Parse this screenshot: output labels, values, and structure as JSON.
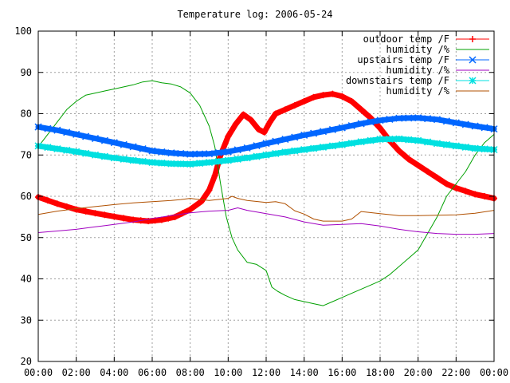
{
  "chart_data": {
    "type": "line",
    "title": "Temperature log: 2006-05-24",
    "xlabel": "",
    "ylabel": "",
    "x_ticks": [
      "00:00",
      "02:00",
      "04:00",
      "06:00",
      "08:00",
      "10:00",
      "12:00",
      "14:00",
      "16:00",
      "18:00",
      "20:00",
      "22:00",
      "00:00"
    ],
    "y_ticks": [
      20,
      30,
      40,
      50,
      60,
      70,
      80,
      90,
      100
    ],
    "xlim": [
      0,
      24
    ],
    "ylim": [
      20,
      100
    ],
    "grid": true,
    "legend_position": "top-right",
    "series": [
      {
        "name": "outdoor temp /F",
        "color": "#ff0000",
        "marker": "plus",
        "points": [
          [
            0,
            59.8
          ],
          [
            1,
            58.2
          ],
          [
            2,
            56.8
          ],
          [
            3,
            55.9
          ],
          [
            4,
            55.1
          ],
          [
            5,
            54.3
          ],
          [
            5.8,
            54.0
          ],
          [
            6.5,
            54.3
          ],
          [
            7.2,
            55.0
          ],
          [
            8,
            56.8
          ],
          [
            8.6,
            58.8
          ],
          [
            9.0,
            61.5
          ],
          [
            9.3,
            65
          ],
          [
            9.6,
            70
          ],
          [
            10.0,
            74.5
          ],
          [
            10.4,
            77.5
          ],
          [
            10.8,
            79.8
          ],
          [
            11.2,
            78.5
          ],
          [
            11.6,
            76.2
          ],
          [
            11.9,
            75.5
          ],
          [
            12.2,
            78
          ],
          [
            12.5,
            80
          ],
          [
            13,
            81
          ],
          [
            13.5,
            82
          ],
          [
            14,
            83
          ],
          [
            14.5,
            84
          ],
          [
            15,
            84.5
          ],
          [
            15.5,
            84.8
          ],
          [
            16,
            84.2
          ],
          [
            16.5,
            83
          ],
          [
            17,
            81
          ],
          [
            17.5,
            79
          ],
          [
            18,
            76.5
          ],
          [
            18.5,
            73.5
          ],
          [
            19,
            71
          ],
          [
            19.5,
            69
          ],
          [
            20,
            67.5
          ],
          [
            20.5,
            66
          ],
          [
            21,
            64.5
          ],
          [
            21.5,
            63
          ],
          [
            22,
            62
          ],
          [
            23,
            60.5
          ],
          [
            24,
            59.5
          ]
        ]
      },
      {
        "name": "humidity /%",
        "color": "#00a000",
        "marker": "none",
        "points": [
          [
            0,
            72
          ],
          [
            0.5,
            75
          ],
          [
            1,
            78
          ],
          [
            1.5,
            81
          ],
          [
            2,
            83
          ],
          [
            2.5,
            84.5
          ],
          [
            3,
            85
          ],
          [
            3.5,
            85.5
          ],
          [
            4,
            86
          ],
          [
            4.5,
            86.5
          ],
          [
            5,
            87
          ],
          [
            5.5,
            87.7
          ],
          [
            6,
            88
          ],
          [
            6.5,
            87.5
          ],
          [
            7,
            87.2
          ],
          [
            7.5,
            86.5
          ],
          [
            8,
            85
          ],
          [
            8.5,
            82
          ],
          [
            9,
            77
          ],
          [
            9.3,
            72
          ],
          [
            9.6,
            63
          ],
          [
            9.9,
            55
          ],
          [
            10.2,
            50
          ],
          [
            10.5,
            47
          ],
          [
            11,
            44
          ],
          [
            11.5,
            43.5
          ],
          [
            12,
            42
          ],
          [
            12.3,
            38
          ],
          [
            12.6,
            37
          ],
          [
            13,
            36
          ],
          [
            13.5,
            35
          ],
          [
            14,
            34.5
          ],
          [
            14.5,
            34
          ],
          [
            15,
            33.5
          ],
          [
            15.5,
            34.5
          ],
          [
            16,
            35.5
          ],
          [
            16.5,
            36.5
          ],
          [
            17,
            37.5
          ],
          [
            17.5,
            38.5
          ],
          [
            18,
            39.5
          ],
          [
            18.5,
            41
          ],
          [
            19,
            43
          ],
          [
            19.5,
            45
          ],
          [
            20,
            47
          ],
          [
            20.5,
            51
          ],
          [
            21,
            55
          ],
          [
            21.5,
            60
          ],
          [
            22,
            63
          ],
          [
            22.5,
            66
          ],
          [
            23,
            70
          ],
          [
            23.5,
            73
          ],
          [
            24,
            75
          ]
        ]
      },
      {
        "name": "upstairs temp /F",
        "color": "#0066ff",
        "marker": "cross",
        "points": [
          [
            0,
            76.8
          ],
          [
            1,
            76
          ],
          [
            2,
            75
          ],
          [
            3,
            74
          ],
          [
            4,
            73
          ],
          [
            5,
            72
          ],
          [
            6,
            71
          ],
          [
            7,
            70.5
          ],
          [
            8,
            70.2
          ],
          [
            9,
            70.3
          ],
          [
            10,
            70.8
          ],
          [
            11,
            71.7
          ],
          [
            12,
            72.8
          ],
          [
            13,
            73.8
          ],
          [
            14,
            74.8
          ],
          [
            15,
            75.7
          ],
          [
            16,
            76.6
          ],
          [
            17,
            77.6
          ],
          [
            18,
            78.4
          ],
          [
            19,
            78.9
          ],
          [
            20,
            79
          ],
          [
            21,
            78.6
          ],
          [
            22,
            77.8
          ],
          [
            23,
            77
          ],
          [
            24,
            76.3
          ]
        ]
      },
      {
        "name": "humidity /%",
        "color": "#a000c0",
        "marker": "none",
        "points": [
          [
            0,
            51.2
          ],
          [
            1,
            51.6
          ],
          [
            2,
            52
          ],
          [
            3,
            52.6
          ],
          [
            4,
            53.2
          ],
          [
            5,
            53.8
          ],
          [
            6,
            54.6
          ],
          [
            7,
            55.3
          ],
          [
            8,
            56
          ],
          [
            9,
            56.4
          ],
          [
            10,
            56.6
          ],
          [
            10.5,
            57.2
          ],
          [
            11,
            56.6
          ],
          [
            12,
            55.8
          ],
          [
            13,
            55
          ],
          [
            14,
            53.8
          ],
          [
            15,
            53
          ],
          [
            16,
            53.2
          ],
          [
            17,
            53.4
          ],
          [
            18,
            52.8
          ],
          [
            19,
            52
          ],
          [
            20,
            51.4
          ],
          [
            21,
            51
          ],
          [
            22,
            50.8
          ],
          [
            23,
            50.8
          ],
          [
            24,
            51
          ]
        ]
      },
      {
        "name": "downstairs temp /F",
        "color": "#00e0e0",
        "marker": "star",
        "points": [
          [
            0,
            72.2
          ],
          [
            1,
            71.5
          ],
          [
            2,
            70.8
          ],
          [
            3,
            70
          ],
          [
            4,
            69.3
          ],
          [
            5,
            68.7
          ],
          [
            6,
            68.2
          ],
          [
            7,
            67.9
          ],
          [
            8,
            67.8
          ],
          [
            9,
            68.2
          ],
          [
            10,
            68.7
          ],
          [
            11,
            69.3
          ],
          [
            12,
            70
          ],
          [
            13,
            70.7
          ],
          [
            14,
            71.3
          ],
          [
            15,
            71.9
          ],
          [
            16,
            72.5
          ],
          [
            17,
            73.2
          ],
          [
            18,
            73.8
          ],
          [
            19,
            73.9
          ],
          [
            20,
            73.5
          ],
          [
            21,
            72.8
          ],
          [
            22,
            72.2
          ],
          [
            23,
            71.6
          ],
          [
            24,
            71.3
          ]
        ]
      },
      {
        "name": "humidity /%",
        "color": "#b05000",
        "marker": "none",
        "points": [
          [
            0,
            55.6
          ],
          [
            1,
            56.4
          ],
          [
            2,
            57
          ],
          [
            3,
            57.5
          ],
          [
            4,
            58
          ],
          [
            5,
            58.4
          ],
          [
            6,
            58.7
          ],
          [
            7,
            59
          ],
          [
            7.5,
            59.2
          ],
          [
            8,
            59.5
          ],
          [
            8.5,
            59.2
          ],
          [
            9,
            59
          ],
          [
            10,
            59.5
          ],
          [
            10.2,
            60
          ],
          [
            10.5,
            59.5
          ],
          [
            11,
            59
          ],
          [
            12,
            58.5
          ],
          [
            12.5,
            58.7
          ],
          [
            13,
            58.2
          ],
          [
            13.5,
            56.5
          ],
          [
            14,
            55.7
          ],
          [
            14.5,
            54.5
          ],
          [
            15,
            54
          ],
          [
            15.5,
            54
          ],
          [
            16,
            54
          ],
          [
            16.5,
            54.5
          ],
          [
            17,
            56.3
          ],
          [
            18,
            55.8
          ],
          [
            19,
            55.3
          ],
          [
            20,
            55.3
          ],
          [
            21,
            55.4
          ],
          [
            22,
            55.5
          ],
          [
            23,
            55.9
          ],
          [
            24,
            56.6
          ]
        ]
      }
    ]
  }
}
